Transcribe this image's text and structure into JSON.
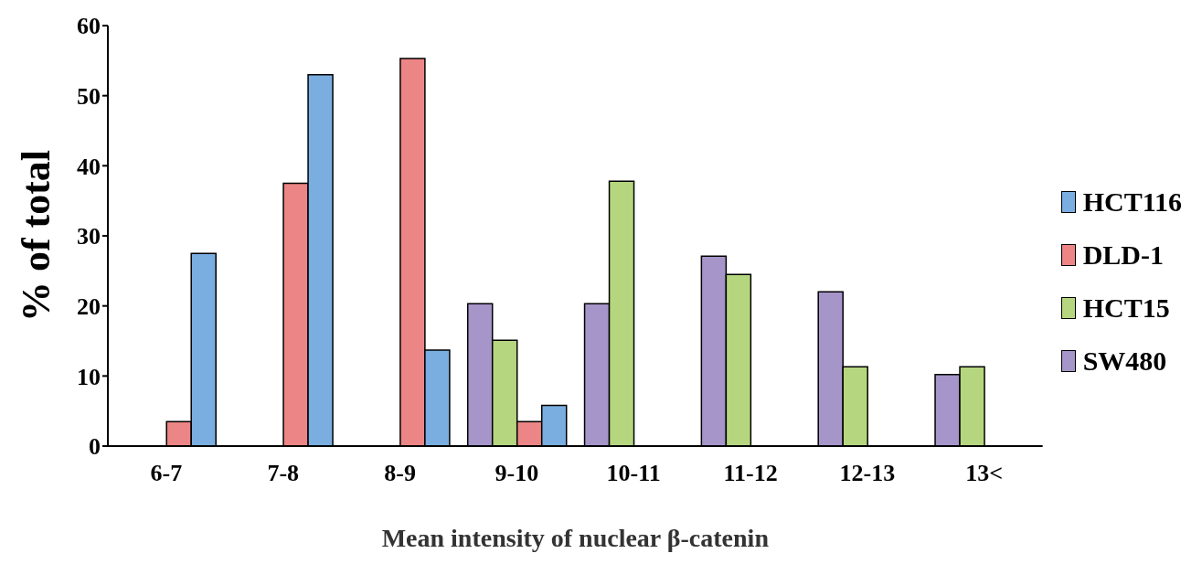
{
  "chart_data": {
    "type": "bar",
    "xlabel": "Mean intensity of nuclear β-catenin",
    "ylabel": "% of total",
    "categories": [
      "6-7",
      "7-8",
      "8-9",
      "9-10",
      "10-11",
      "11-12",
      "12-13",
      "13<"
    ],
    "series": [
      {
        "name": "HCT116",
        "color": "#7aaee0",
        "values": [
          27.5,
          53,
          13.7,
          5.8,
          null,
          null,
          null,
          null
        ]
      },
      {
        "name": "DLD-1",
        "color": "#ec8585",
        "values": [
          3.5,
          37.5,
          55.3,
          3.5,
          null,
          null,
          null,
          null
        ]
      },
      {
        "name": "HCT15",
        "color": "#b5d67f",
        "values": [
          null,
          null,
          null,
          15.1,
          37.8,
          24.5,
          11.3,
          11.3
        ]
      },
      {
        "name": "SW480",
        "color": "#a695c9",
        "values": [
          null,
          null,
          null,
          20.3,
          20.3,
          27.1,
          22,
          10.2
        ]
      }
    ],
    "ylim": [
      0,
      60
    ],
    "yticks": [
      0,
      10,
      20,
      30,
      40,
      50,
      60
    ],
    "grid": false,
    "legend": "right"
  }
}
